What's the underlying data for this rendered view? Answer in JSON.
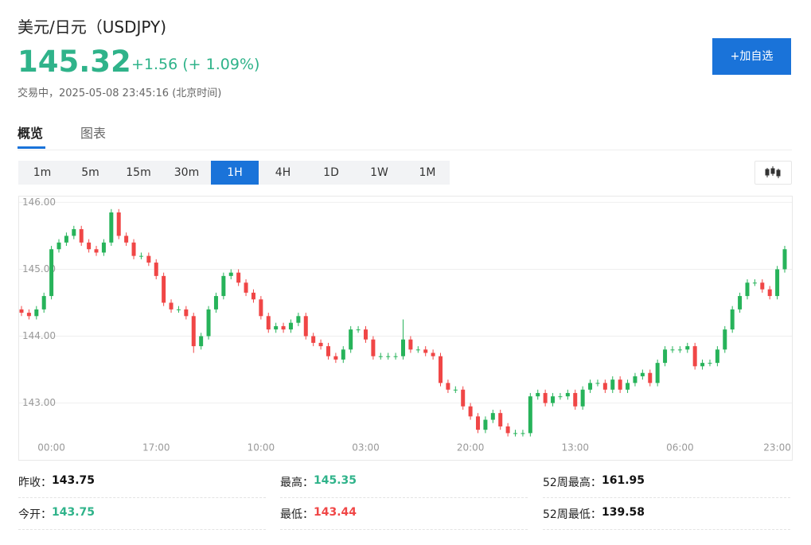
{
  "header": {
    "title": "美元/日元（USDJPY)",
    "price": "145.32",
    "change": "+1.56 (+ 1.09%)",
    "status": "交易中，2025-05-08 23:45:16 (北京时间)",
    "button": "+加自选"
  },
  "tabs": [
    "概览",
    "图表"
  ],
  "intervals": [
    "1m",
    "5m",
    "15m",
    "30m",
    "1H",
    "4H",
    "1D",
    "1W",
    "1M"
  ],
  "active_interval": 4,
  "chart_data": {
    "type": "candlestick",
    "up_color": "#27b35a",
    "down_color": "#f04646",
    "categories": [
      null,
      null,
      null,
      null,
      "00:00",
      null,
      null,
      null,
      null,
      null,
      null,
      null,
      null,
      null,
      null,
      null,
      null,
      null,
      "17:00",
      null,
      null,
      null,
      null,
      null,
      null,
      null,
      null,
      null,
      null,
      null,
      null,
      null,
      "10:00",
      null,
      null,
      null,
      null,
      null,
      null,
      null,
      null,
      null,
      null,
      null,
      null,
      null,
      "03:00",
      null,
      null,
      null,
      null,
      null,
      null,
      null,
      null,
      null,
      null,
      null,
      null,
      null,
      "20:00",
      null,
      null,
      null,
      null,
      null,
      null,
      null,
      null,
      null,
      null,
      null,
      null,
      null,
      "13:00",
      null,
      null,
      null,
      null,
      null,
      null,
      null,
      null,
      null,
      null,
      null,
      null,
      null,
      "06:00",
      null,
      null,
      null,
      null,
      null,
      null,
      null,
      null,
      null,
      null,
      null,
      null,
      "23:00",
      null
    ],
    "open": [
      144.4,
      144.35,
      144.3,
      144.4,
      144.6,
      145.3,
      145.4,
      145.5,
      145.6,
      145.4,
      145.3,
      145.25,
      145.4,
      145.85,
      145.5,
      145.4,
      145.2,
      145.2,
      145.1,
      144.9,
      144.5,
      144.4,
      144.4,
      144.3,
      143.85,
      144.0,
      144.4,
      144.6,
      144.9,
      144.95,
      144.8,
      144.65,
      144.55,
      144.3,
      144.1,
      144.15,
      144.1,
      144.2,
      144.3,
      144.0,
      143.9,
      143.85,
      143.7,
      143.65,
      143.8,
      144.1,
      144.1,
      143.95,
      143.7,
      143.7,
      143.7,
      143.7,
      143.95,
      143.8,
      143.8,
      143.75,
      143.7,
      143.3,
      143.2,
      143.2,
      142.95,
      142.8,
      142.6,
      142.75,
      142.85,
      142.65,
      142.55,
      142.55,
      142.55,
      143.1,
      143.15,
      143.0,
      143.1,
      143.1,
      143.15,
      142.95,
      143.2,
      143.3,
      143.3,
      143.2,
      143.35,
      143.2,
      143.3,
      143.4,
      143.45,
      143.3,
      143.6,
      143.8,
      143.8,
      143.8,
      143.85,
      143.55,
      143.6,
      143.6,
      143.8,
      144.1,
      144.4,
      144.6,
      144.8,
      144.8,
      144.7,
      144.6,
      145.0
    ],
    "close": [
      144.35,
      144.3,
      144.4,
      144.6,
      145.3,
      145.4,
      145.5,
      145.6,
      145.4,
      145.3,
      145.25,
      145.4,
      145.85,
      145.5,
      145.4,
      145.2,
      145.2,
      145.1,
      144.9,
      144.5,
      144.4,
      144.4,
      144.3,
      143.85,
      144.0,
      144.4,
      144.6,
      144.9,
      144.95,
      144.8,
      144.65,
      144.55,
      144.3,
      144.1,
      144.15,
      144.1,
      144.2,
      144.3,
      144.0,
      143.9,
      143.85,
      143.7,
      143.65,
      143.8,
      144.1,
      144.1,
      143.95,
      143.7,
      143.7,
      143.7,
      143.7,
      143.95,
      143.8,
      143.8,
      143.75,
      143.7,
      143.3,
      143.2,
      143.2,
      142.95,
      142.8,
      142.6,
      142.75,
      142.85,
      142.65,
      142.55,
      142.55,
      142.55,
      143.1,
      143.15,
      143.0,
      143.1,
      143.1,
      143.15,
      142.95,
      143.2,
      143.3,
      143.3,
      143.2,
      143.35,
      143.2,
      143.3,
      143.4,
      143.45,
      143.3,
      143.6,
      143.8,
      143.8,
      143.8,
      143.85,
      143.55,
      143.6,
      143.6,
      143.8,
      144.1,
      144.4,
      144.6,
      144.8,
      144.8,
      144.7,
      144.6,
      145.0,
      145.3
    ],
    "high": [
      144.45,
      144.4,
      144.45,
      144.65,
      145.35,
      145.45,
      145.55,
      145.65,
      145.65,
      145.45,
      145.35,
      145.45,
      145.9,
      145.9,
      145.55,
      145.45,
      145.25,
      145.25,
      145.15,
      144.95,
      144.55,
      144.45,
      144.45,
      144.35,
      144.05,
      144.45,
      144.65,
      144.95,
      145.0,
      145.0,
      144.85,
      144.7,
      144.6,
      144.35,
      144.2,
      144.2,
      144.25,
      144.35,
      144.35,
      144.05,
      143.95,
      143.9,
      143.75,
      143.85,
      144.15,
      144.15,
      144.15,
      144.0,
      143.75,
      143.75,
      143.75,
      144.25,
      144.0,
      143.85,
      143.85,
      143.8,
      143.75,
      143.35,
      143.25,
      143.25,
      143.0,
      142.85,
      142.8,
      142.9,
      142.9,
      142.7,
      142.6,
      142.6,
      143.15,
      143.2,
      143.2,
      143.15,
      143.15,
      143.2,
      143.2,
      143.25,
      143.35,
      143.35,
      143.35,
      143.4,
      143.4,
      143.35,
      143.45,
      143.5,
      143.5,
      143.65,
      143.85,
      143.85,
      143.85,
      143.9,
      143.9,
      143.65,
      143.65,
      143.85,
      144.15,
      144.45,
      144.65,
      144.85,
      144.85,
      144.85,
      144.75,
      145.05,
      145.35
    ],
    "low": [
      144.3,
      144.25,
      144.25,
      144.35,
      144.55,
      145.25,
      145.35,
      145.45,
      145.35,
      145.25,
      145.2,
      145.2,
      145.35,
      145.45,
      145.35,
      145.15,
      145.15,
      145.05,
      144.85,
      144.45,
      144.35,
      144.35,
      144.25,
      143.75,
      143.8,
      143.95,
      144.35,
      144.55,
      144.85,
      144.75,
      144.6,
      144.5,
      144.25,
      144.05,
      144.05,
      144.05,
      144.05,
      144.15,
      143.95,
      143.85,
      143.8,
      143.65,
      143.6,
      143.6,
      143.75,
      144.05,
      143.9,
      143.65,
      143.65,
      143.65,
      143.65,
      143.65,
      143.75,
      143.75,
      143.7,
      143.65,
      143.25,
      143.15,
      143.15,
      142.9,
      142.75,
      142.55,
      142.55,
      142.7,
      142.6,
      142.5,
      142.5,
      142.5,
      142.5,
      143.05,
      142.95,
      142.95,
      143.05,
      143.05,
      142.9,
      142.9,
      143.15,
      143.25,
      143.15,
      143.15,
      143.15,
      143.15,
      143.25,
      143.35,
      143.25,
      143.25,
      143.55,
      143.75,
      143.75,
      143.75,
      143.5,
      143.5,
      143.55,
      143.55,
      143.75,
      144.05,
      144.35,
      144.55,
      144.75,
      144.65,
      144.55,
      144.55,
      144.95
    ],
    "ylim": [
      142.15,
      146.1
    ],
    "yticks": [
      {
        "value": 143,
        "label": "143.00"
      },
      {
        "value": 144,
        "label": "144.00"
      },
      {
        "value": 145,
        "label": "145.00"
      },
      {
        "value": 146,
        "label": "146.00"
      }
    ],
    "grid": true
  },
  "stats": [
    [
      {
        "label": "昨收：",
        "value": "143.75"
      },
      {
        "label": "最高：",
        "value": "145.35"
      },
      {
        "label": "52周最高：",
        "value": "161.95"
      }
    ],
    [
      {
        "label": "今开：",
        "value": "143.75"
      },
      {
        "label": "最低：",
        "value": "143.44"
      },
      {
        "label": "52周最低：",
        "value": "139.58"
      }
    ]
  ]
}
